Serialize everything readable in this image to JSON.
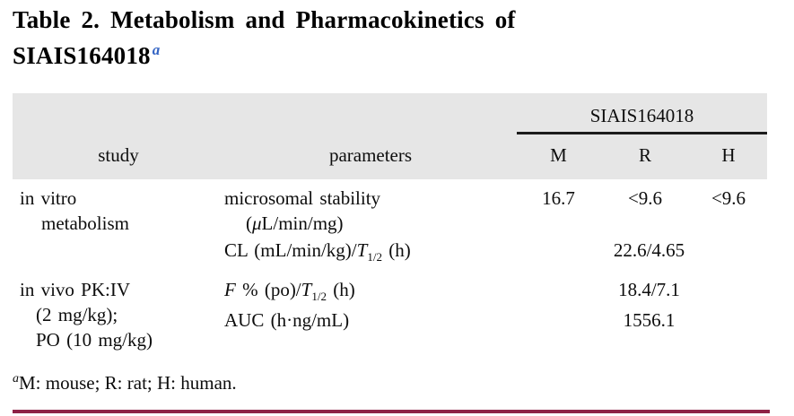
{
  "title": {
    "line1": "Table 2. Metabolism and Pharmacokinetics of",
    "line2": "SIAIS164018",
    "superscript": "a"
  },
  "colors": {
    "title_superscript_blue": "#3565c4",
    "header_background": "#e6e6e6",
    "group_underline_black": "#1c1c1c",
    "bottom_rule_maroon": "#8e2246",
    "text": "#0d0d0d"
  },
  "table": {
    "group_header": "SIAIS164018",
    "columns": {
      "study": "study",
      "parameters": "parameters",
      "m": "M",
      "r": "R",
      "h": "H"
    },
    "rows": {
      "in_vitro": {
        "study_line1": "in vitro",
        "study_line2": "metabolism",
        "microsomal": {
          "line1": "microsomal stability",
          "l2_open": "(",
          "l2_mu": "μ",
          "l2_rest": "L/min/mg)"
        },
        "values": {
          "m": "16.7",
          "r": "<9.6",
          "h": "<9.6"
        },
        "cl": {
          "prefix": "CL (mL/min/kg)/",
          "t": "T",
          "sub": "1/2",
          "suffix": " (h)",
          "value": "22.6/4.65"
        }
      },
      "in_vivo": {
        "study_line1": "in vivo PK:IV",
        "study_line2": "(2 mg/kg);",
        "study_line3": "PO (10 mg/kg)",
        "f": {
          "f": "F",
          "mid": " % (po)/",
          "t": "T",
          "sub": "1/2",
          "suffix": " (h)",
          "value": "18.4/7.1"
        },
        "auc": {
          "label": "AUC (h·ng/mL)",
          "value": "1556.1"
        }
      }
    }
  },
  "footnote": {
    "superscript": "a",
    "text": "M: mouse; R: rat; H: human."
  }
}
